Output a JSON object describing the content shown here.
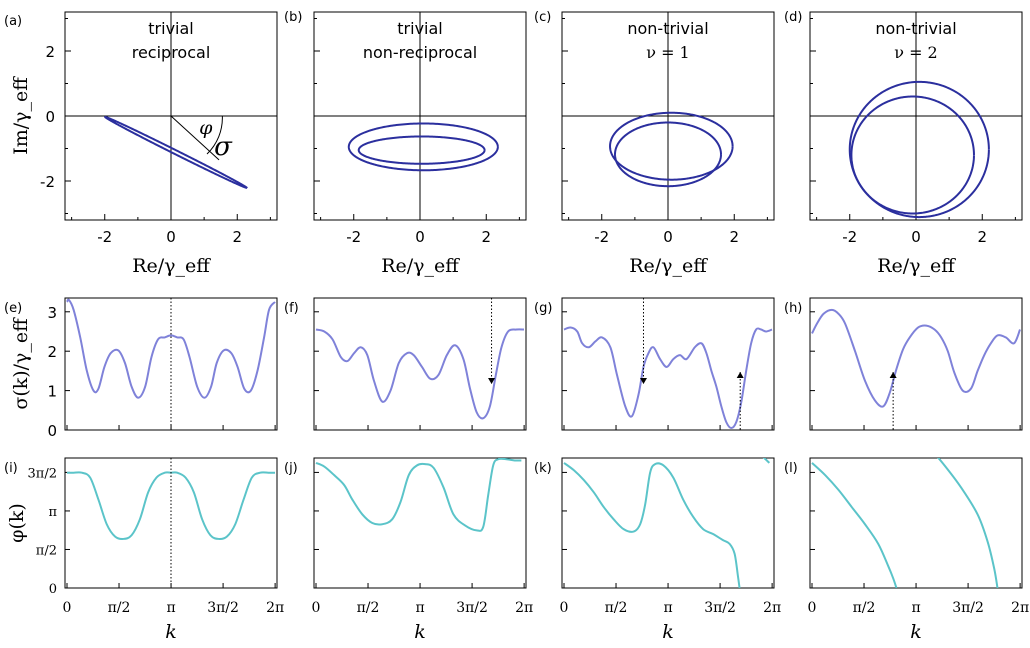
{
  "chart_data": [
    {
      "panel": "(a)",
      "type": "line",
      "title": [
        "trivial",
        "reciprocal"
      ],
      "xlabel": "Re/γ_eff",
      "ylabel": "Im/γ_eff",
      "xlim": [
        -3.2,
        3.2
      ],
      "ylim": [
        -3.2,
        3.2
      ],
      "xticks": [
        "-2",
        "0",
        "2"
      ],
      "yticks": [
        "2",
        "0",
        "-2"
      ],
      "annotations": [
        "φ",
        "σ"
      ],
      "curve": {
        "kind": "ellipse",
        "cx": 0.15,
        "cy": -1.12,
        "rx": 2.4,
        "ry": 0.06,
        "rot": -27,
        "loops": 1
      }
    },
    {
      "panel": "(b)",
      "type": "line",
      "title": [
        "trivial",
        "non-reciprocal"
      ],
      "xlabel": "Re/γ_eff",
      "xlim": [
        -3.2,
        3.2
      ],
      "ylim": [
        -3.2,
        3.2
      ],
      "xticks": [
        "-2",
        "0",
        "2"
      ],
      "curve": {
        "kind": "figure-eight",
        "cx": 0.1,
        "cy": -1.0,
        "ax": 2.2,
        "ay": 0.72
      }
    },
    {
      "panel": "(c)",
      "type": "line",
      "title": [
        "non-trivial",
        "ν = 1"
      ],
      "xlabel": "Re/γ_eff",
      "xlim": [
        -3.2,
        3.2
      ],
      "ylim": [
        -3.2,
        3.2
      ],
      "xticks": [
        "-2",
        "0",
        "2"
      ],
      "curve": {
        "kind": "two-loops",
        "loops": [
          {
            "cx": 0.1,
            "cy": -0.93,
            "rx": 1.85,
            "ry": 1.03
          },
          {
            "cx": 0.0,
            "cy": -1.18,
            "rx": 1.6,
            "ry": 0.98
          }
        ]
      }
    },
    {
      "panel": "(d)",
      "type": "line",
      "title": [
        "non-trivial",
        "ν = 2"
      ],
      "xlabel": "Re/γ_eff",
      "xlim": [
        -3.2,
        3.2
      ],
      "ylim": [
        -3.2,
        3.2
      ],
      "xticks": [
        "-2",
        "0",
        "2"
      ],
      "curve": {
        "kind": "two-loops",
        "loops": [
          {
            "cx": 0.1,
            "cy": -1.03,
            "rx": 2.1,
            "ry": 2.08
          },
          {
            "cx": -0.1,
            "cy": -1.2,
            "rx": 1.85,
            "ry": 1.8
          }
        ]
      }
    },
    {
      "panel": "(e)",
      "type": "line",
      "ylabel": "σ(k)/γ_eff",
      "ylim": [
        0,
        3.35
      ],
      "yticks": [
        "3",
        "2",
        "1",
        "0"
      ],
      "x": [
        0,
        0.06,
        0.2,
        0.4,
        0.6,
        0.8,
        0.95,
        1.13,
        1.32,
        1.55,
        1.75,
        1.95,
        2.15,
        2.36,
        2.55,
        2.75,
        2.95,
        3.14,
        3.33,
        3.52,
        3.7,
        3.93,
        4.15,
        4.35,
        4.52,
        4.73,
        4.96,
        5.15,
        5.35,
        5.55,
        5.75,
        5.95,
        6.1,
        6.28
      ],
      "y": [
        3.25,
        3.3,
        3.05,
        2.35,
        1.5,
        1.0,
        1.05,
        1.6,
        1.95,
        2.02,
        1.7,
        1.1,
        0.82,
        1.1,
        1.85,
        2.3,
        2.35,
        2.4,
        2.35,
        2.3,
        1.85,
        1.1,
        0.82,
        1.1,
        1.7,
        2.02,
        1.95,
        1.6,
        1.05,
        1.0,
        1.5,
        2.35,
        3.05,
        3.25
      ],
      "markers": [
        {
          "x": 3.14,
          "style": "dotted-line"
        }
      ]
    },
    {
      "panel": "(f)",
      "type": "line",
      "ylim": [
        0,
        3.35
      ],
      "x": [
        0,
        0.25,
        0.5,
        0.75,
        0.95,
        1.15,
        1.35,
        1.55,
        1.75,
        2.0,
        2.25,
        2.5,
        2.75,
        2.95,
        3.2,
        3.45,
        3.7,
        3.95,
        4.2,
        4.45,
        4.65,
        4.85,
        5.05,
        5.25,
        5.43,
        5.6,
        5.8,
        6.05,
        6.28
      ],
      "y": [
        2.55,
        2.5,
        2.3,
        1.85,
        1.75,
        1.95,
        2.1,
        1.9,
        1.25,
        0.72,
        1.0,
        1.7,
        1.95,
        1.9,
        1.6,
        1.3,
        1.4,
        1.9,
        2.15,
        1.8,
        1.05,
        0.45,
        0.3,
        0.6,
        1.4,
        2.1,
        2.5,
        2.55,
        2.55
      ],
      "markers": [
        {
          "x": 5.3,
          "style": "dotted-arrow-down"
        }
      ]
    },
    {
      "panel": "(g)",
      "type": "line",
      "ylim": [
        0,
        3.35
      ],
      "x": [
        0,
        0.2,
        0.4,
        0.55,
        0.75,
        0.95,
        1.15,
        1.4,
        1.6,
        1.85,
        2.05,
        2.25,
        2.4,
        2.55,
        2.7,
        2.9,
        3.1,
        3.3,
        3.5,
        3.7,
        3.95,
        4.15,
        4.3,
        4.45,
        4.6,
        4.75,
        4.9,
        5.05,
        5.2,
        5.35,
        5.5,
        5.65,
        5.8,
        5.95,
        6.1,
        6.28
      ],
      "y": [
        2.55,
        2.6,
        2.5,
        2.2,
        2.1,
        2.25,
        2.35,
        2.1,
        1.4,
        0.6,
        0.35,
        0.9,
        1.6,
        1.95,
        2.1,
        1.8,
        1.6,
        1.8,
        1.9,
        1.8,
        2.1,
        2.2,
        1.95,
        1.5,
        1.1,
        0.6,
        0.2,
        0.05,
        0.2,
        0.7,
        1.5,
        2.2,
        2.55,
        2.55,
        2.5,
        2.55
      ],
      "markers": [
        {
          "x": 2.4,
          "style": "dotted-arrow-down"
        },
        {
          "x": 5.32,
          "style": "dotted-arrow-up"
        }
      ]
    },
    {
      "panel": "(h)",
      "type": "line",
      "ylim": [
        0,
        3.35
      ],
      "x": [
        0,
        0.15,
        0.35,
        0.6,
        0.8,
        1.0,
        1.3,
        1.6,
        1.9,
        2.15,
        2.35,
        2.55,
        2.75,
        2.95,
        3.2,
        3.45,
        3.7,
        3.9,
        4.1,
        4.3,
        4.55,
        4.8,
        5.0,
        5.2,
        5.4,
        5.6,
        5.85,
        6.1,
        6.28
      ],
      "y": [
        2.45,
        2.7,
        2.95,
        3.05,
        2.95,
        2.7,
        2.0,
        1.25,
        0.75,
        0.6,
        0.95,
        1.55,
        2.05,
        2.35,
        2.6,
        2.65,
        2.55,
        2.35,
        2.0,
        1.45,
        1.0,
        1.05,
        1.5,
        1.9,
        2.2,
        2.4,
        2.35,
        2.2,
        2.55
      ],
      "markers": [
        {
          "x": 2.45,
          "style": "dotted-arrow-up"
        }
      ]
    },
    {
      "panel": "(i)",
      "type": "line",
      "ylabel": "φ(k)",
      "ylim": [
        0,
        5.3
      ],
      "yticks": [
        "3π/2",
        "π",
        "π/2",
        "0"
      ],
      "xlabel": "k",
      "xticks": [
        "0",
        "π/2",
        "π",
        "3π/2",
        "2π"
      ],
      "x": [
        0,
        0.2,
        0.45,
        0.7,
        0.95,
        1.2,
        1.45,
        1.7,
        1.95,
        2.2,
        2.45,
        2.7,
        2.95,
        3.14,
        3.33,
        3.58,
        3.83,
        4.08,
        4.33,
        4.58,
        4.83,
        5.08,
        5.33,
        5.58,
        5.83,
        6.08,
        6.28
      ],
      "y": [
        4.7,
        4.7,
        4.7,
        4.5,
        3.6,
        2.6,
        2.1,
        2.0,
        2.15,
        2.8,
        3.9,
        4.5,
        4.7,
        4.7,
        4.7,
        4.5,
        3.9,
        2.8,
        2.15,
        2.0,
        2.1,
        2.6,
        3.6,
        4.5,
        4.7,
        4.7,
        4.7
      ],
      "markers": [
        {
          "x": 3.14,
          "style": "dotted-line"
        }
      ]
    },
    {
      "panel": "(j)",
      "type": "line",
      "ylim": [
        0,
        5.3
      ],
      "xlabel": "k",
      "xticks": [
        "0",
        "π/2",
        "π",
        "3π/2",
        "2π"
      ],
      "x": [
        0,
        0.25,
        0.55,
        0.85,
        1.1,
        1.4,
        1.7,
        2.0,
        2.3,
        2.55,
        2.8,
        3.05,
        3.3,
        3.55,
        3.85,
        4.15,
        4.5,
        4.85,
        5.05,
        5.2,
        5.35,
        5.5,
        5.75,
        6.0,
        6.2
      ],
      "y": [
        5.1,
        4.95,
        4.6,
        4.2,
        3.6,
        3.0,
        2.65,
        2.6,
        2.8,
        3.5,
        4.6,
        5.0,
        5.05,
        4.9,
        4.1,
        3.0,
        2.55,
        2.35,
        2.5,
        3.8,
        5.0,
        5.25,
        5.25,
        5.2,
        5.2
      ]
    },
    {
      "panel": "(k)",
      "type": "line",
      "ylim": [
        0,
        5.3
      ],
      "xlabel": "k",
      "xticks": [
        "0",
        "π/2",
        "π",
        "3π/2",
        "2π"
      ],
      "segments": [
        {
          "x": [
            0,
            0.3,
            0.6,
            0.9,
            1.2,
            1.5,
            1.8,
            2.1,
            2.3,
            2.45,
            2.6,
            2.75,
            3.0,
            3.3,
            3.6,
            3.9,
            4.2,
            4.5,
            4.8,
            5.0,
            5.15,
            5.25,
            5.3
          ],
          "y": [
            5.1,
            4.8,
            4.4,
            3.9,
            3.3,
            2.8,
            2.4,
            2.3,
            2.6,
            3.4,
            4.7,
            5.05,
            5.0,
            4.5,
            3.6,
            2.9,
            2.4,
            2.2,
            1.95,
            1.8,
            1.4,
            0.5,
            0.0
          ]
        },
        {
          "x": [
            5.35,
            5.4,
            5.45,
            5.55,
            5.75,
            6.0,
            6.2
          ],
          "y": [
            8.2,
            7.0,
            6.2,
            5.9,
            5.6,
            5.35,
            5.1
          ]
        }
      ]
    },
    {
      "panel": "(l)",
      "type": "line",
      "ylim": [
        0,
        5.3
      ],
      "xlabel": "k",
      "xticks": [
        "0",
        "π/2",
        "π",
        "3π/2",
        "2π"
      ],
      "segments": [
        {
          "x": [
            0,
            0.4,
            0.8,
            1.2,
            1.6,
            2.0,
            2.3,
            2.45,
            2.55
          ],
          "y": [
            5.1,
            4.6,
            4.0,
            3.3,
            2.6,
            1.8,
            0.9,
            0.4,
            0.0
          ]
        },
        {
          "x": [
            2.6,
            2.75,
            2.9,
            3.1,
            3.5,
            4.0,
            4.5,
            5.0,
            5.3,
            5.5,
            5.6
          ],
          "y": [
            8.2,
            7.5,
            6.9,
            6.4,
            5.8,
            5.0,
            4.1,
            3.0,
            1.9,
            0.8,
            0.0
          ]
        },
        {
          "x": [
            5.65,
            5.8,
            6.0,
            6.2
          ],
          "y": [
            8.2,
            7.2,
            6.5,
            5.8
          ]
        }
      ]
    }
  ]
}
